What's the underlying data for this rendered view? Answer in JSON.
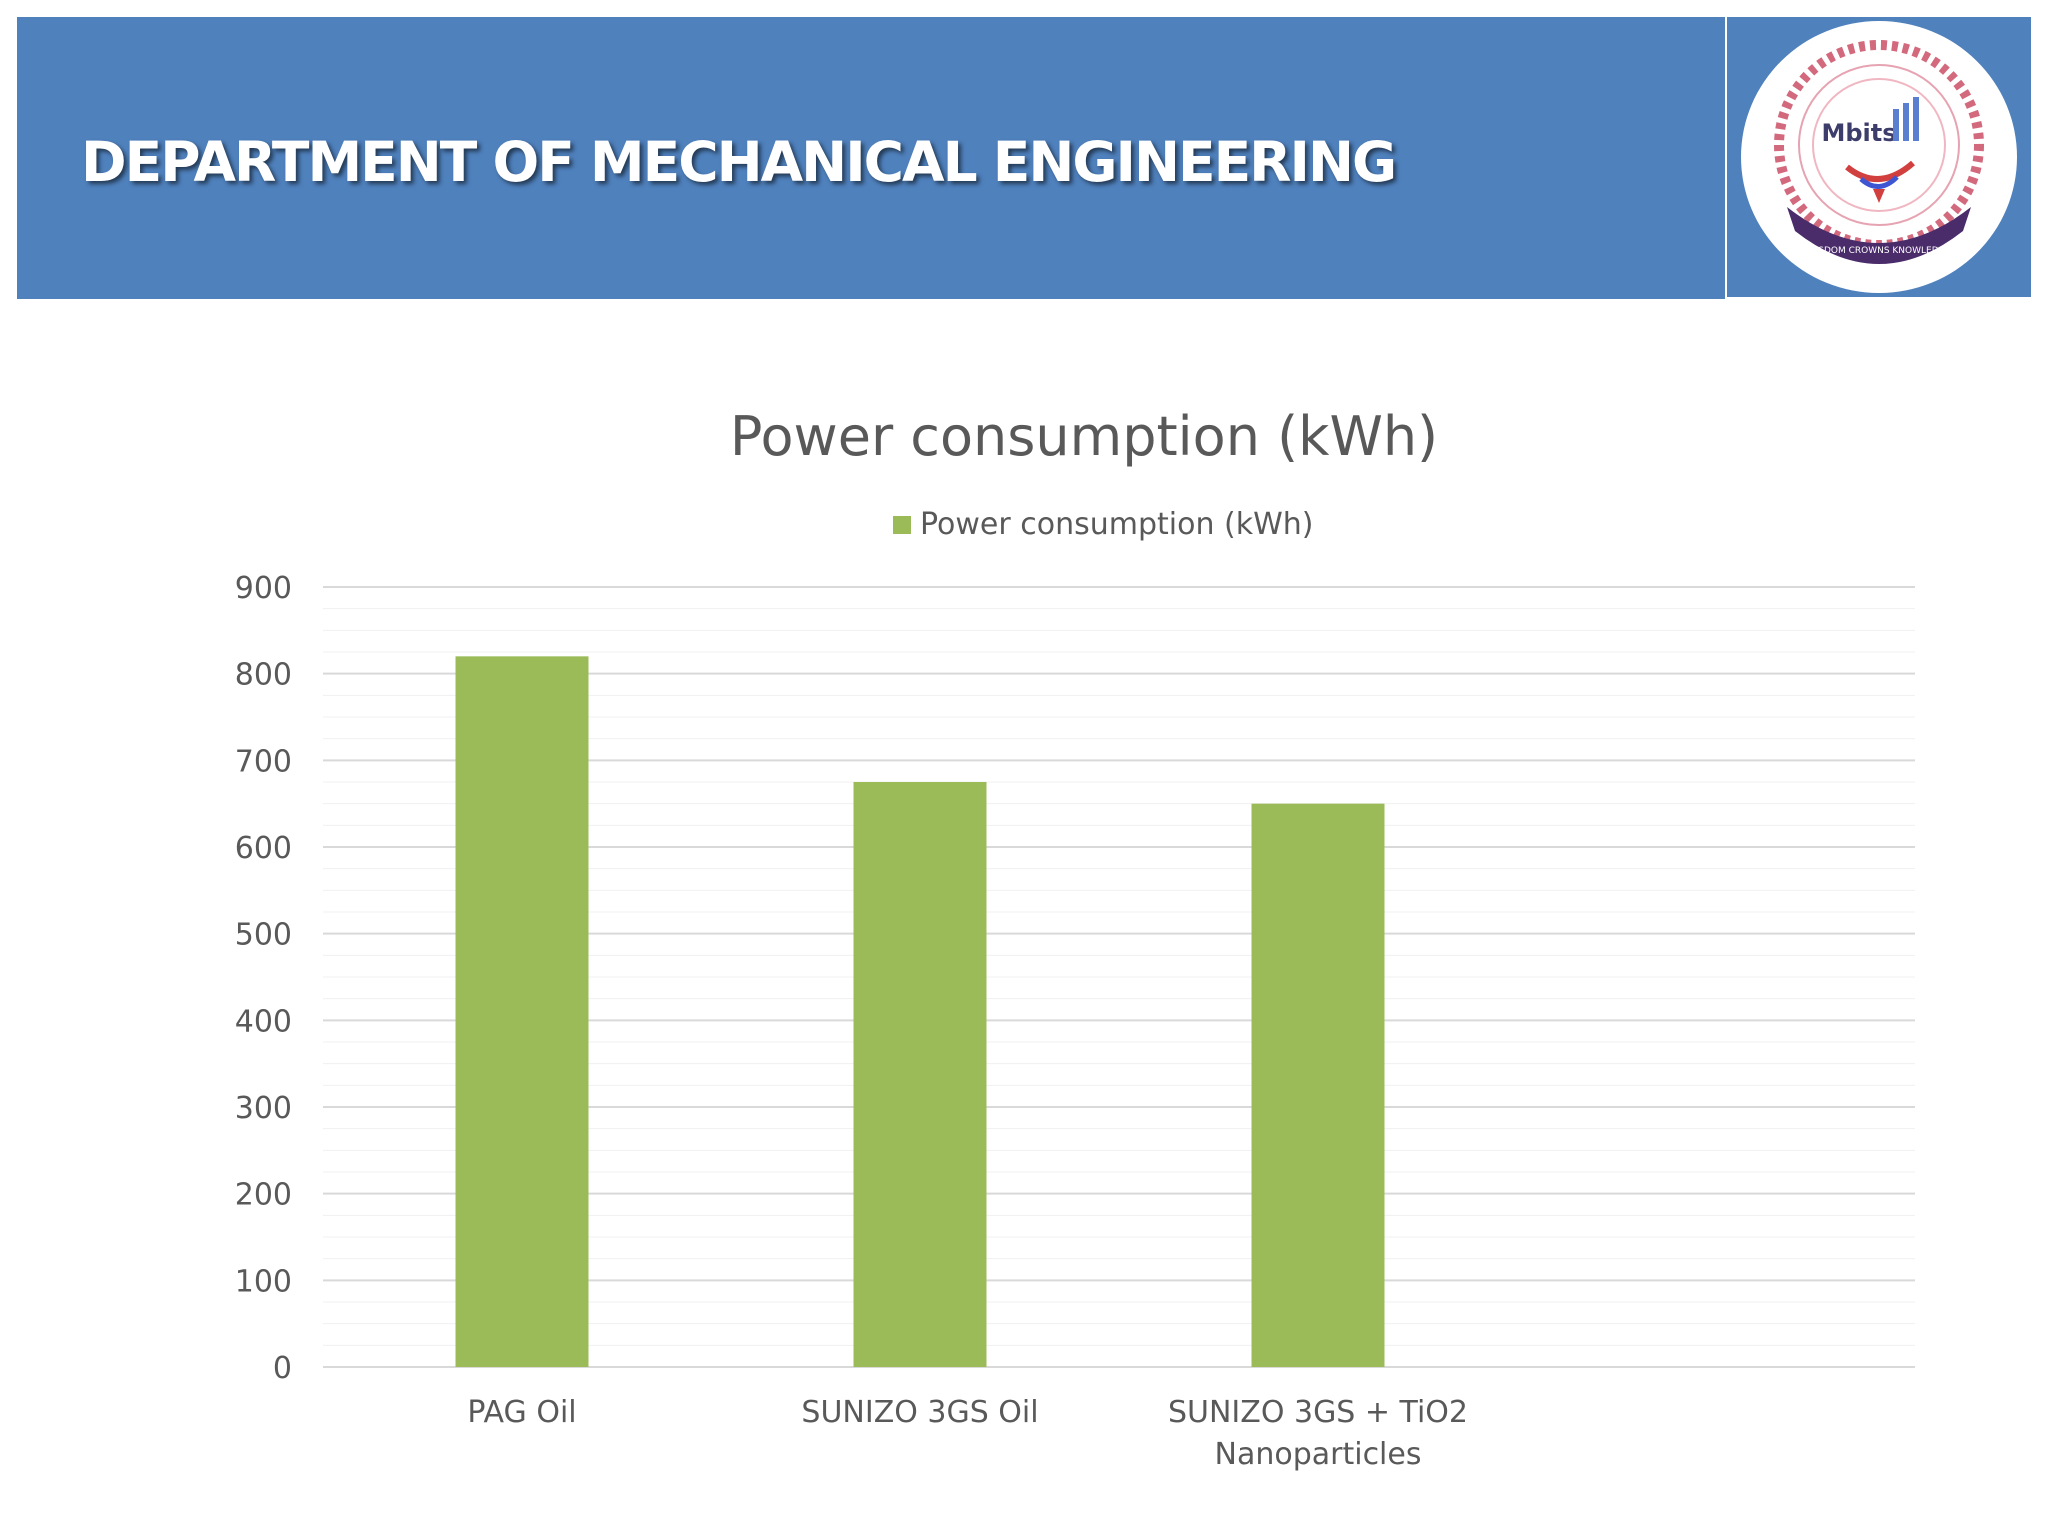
{
  "header": {
    "title": "DEPARTMENT OF MECHANICAL ENGINEERING",
    "background_color": "#4f81bd",
    "logo": {
      "icon": "institution-seal-icon",
      "text": "Mbits",
      "motto": "WISDOM CROWNS KNOWLEDGE"
    }
  },
  "chart_data": {
    "type": "bar",
    "title": "Power consumption (kWh)",
    "xlabel": "",
    "ylabel": "",
    "categories": [
      "PAG Oil",
      "SUNIZO 3GS Oil",
      "SUNIZO 3GS + TiO2 Nanoparticles"
    ],
    "series": [
      {
        "name": "Power consumption (kWh)",
        "values": [
          820,
          675,
          650
        ],
        "color": "#9bbb59"
      }
    ],
    "ylim": [
      0,
      900
    ],
    "yticks": [
      0,
      100,
      200,
      300,
      400,
      500,
      600,
      700,
      800,
      900
    ],
    "grid": true,
    "legend_position": "top-center"
  }
}
